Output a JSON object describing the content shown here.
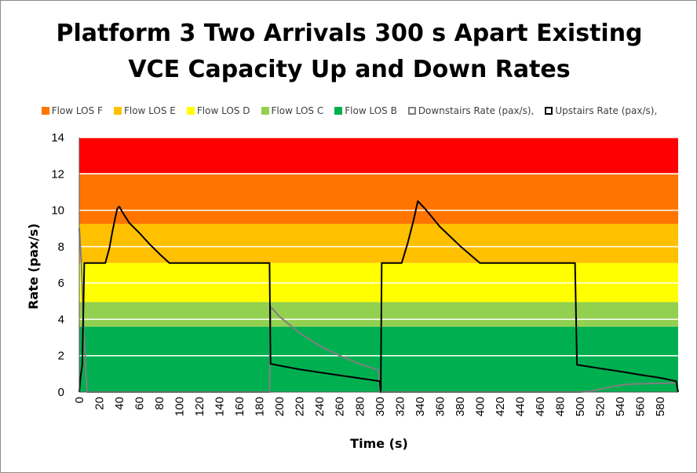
{
  "chart_data": {
    "type": "line",
    "title_lines": [
      "Platform 3 Two Arrivals 300 s Apart Existing",
      "VCE Capacity Up and Down Rates"
    ],
    "xlabel": "Time (s)",
    "ylabel": "Rate (pax/s)",
    "xlim": [
      0,
      598
    ],
    "ylim": [
      0,
      14
    ],
    "x_ticks": [
      0,
      20,
      40,
      60,
      80,
      100,
      120,
      140,
      160,
      180,
      200,
      220,
      240,
      260,
      280,
      300,
      320,
      340,
      360,
      380,
      400,
      420,
      440,
      460,
      480,
      500,
      520,
      540,
      560,
      580
    ],
    "y_ticks": [
      0,
      2,
      4,
      6,
      8,
      10,
      12,
      14
    ],
    "bands": [
      {
        "name": "Flow LOS B",
        "from": 0,
        "to": 3.6,
        "color": "#00b050"
      },
      {
        "name": "Flow LOS C",
        "from": 3.6,
        "to": 4.95,
        "color": "#92d050"
      },
      {
        "name": "Flow LOS D",
        "from": 4.95,
        "to": 7.1,
        "color": "#ffff00"
      },
      {
        "name": "Flow LOS E",
        "from": 7.1,
        "to": 9.25,
        "color": "#ffc000"
      },
      {
        "name": "Flow LOS F",
        "from": 9.25,
        "to": 12.05,
        "color": "#ff7500"
      },
      {
        "name": "",
        "from": 12.05,
        "to": 14,
        "color": "#ff0000"
      }
    ],
    "series": [
      {
        "name": "Downstairs Rate (pax/s),",
        "color": "#7f7f7f",
        "points": [
          [
            0,
            9.0
          ],
          [
            2,
            7.2
          ],
          [
            4,
            4.0
          ],
          [
            6,
            1.8
          ],
          [
            7,
            0.6
          ],
          [
            8,
            0
          ],
          [
            190,
            0
          ],
          [
            191,
            4.7
          ],
          [
            200,
            4.15
          ],
          [
            220,
            3.25
          ],
          [
            240,
            2.55
          ],
          [
            260,
            2.0
          ],
          [
            280,
            1.55
          ],
          [
            299,
            1.2
          ],
          [
            300,
            0
          ],
          [
            500,
            0
          ],
          [
            510,
            0.05
          ],
          [
            520,
            0.15
          ],
          [
            530,
            0.28
          ],
          [
            540,
            0.38
          ],
          [
            550,
            0.43
          ],
          [
            560,
            0.46
          ],
          [
            580,
            0.48
          ],
          [
            597,
            0.48
          ]
        ]
      },
      {
        "name": "Upstairs Rate (pax/s),",
        "color": "#000000",
        "points": [
          [
            0,
            0
          ],
          [
            1,
            0.7
          ],
          [
            3,
            1.5
          ],
          [
            5,
            7.1
          ],
          [
            26,
            7.1
          ],
          [
            30,
            7.9
          ],
          [
            33,
            8.8
          ],
          [
            36,
            9.6
          ],
          [
            38,
            10.1
          ],
          [
            40,
            10.2
          ],
          [
            43,
            9.9
          ],
          [
            50,
            9.3
          ],
          [
            60,
            8.75
          ],
          [
            70,
            8.15
          ],
          [
            80,
            7.6
          ],
          [
            90,
            7.1
          ],
          [
            190,
            7.1
          ],
          [
            191,
            1.55
          ],
          [
            220,
            1.25
          ],
          [
            250,
            1.0
          ],
          [
            275,
            0.8
          ],
          [
            300,
            0.6
          ],
          [
            301,
            0
          ],
          [
            302,
            7.1
          ],
          [
            322,
            7.1
          ],
          [
            328,
            8.2
          ],
          [
            334,
            9.5
          ],
          [
            338,
            10.5
          ],
          [
            345,
            10.1
          ],
          [
            360,
            9.1
          ],
          [
            380,
            8.05
          ],
          [
            400,
            7.1
          ],
          [
            495,
            7.1
          ],
          [
            497,
            1.5
          ],
          [
            520,
            1.3
          ],
          [
            540,
            1.13
          ],
          [
            560,
            0.95
          ],
          [
            580,
            0.78
          ],
          [
            596,
            0.6
          ],
          [
            598,
            0
          ]
        ]
      }
    ]
  },
  "legend": [
    {
      "label": "Flow LOS F",
      "color": "#ff7500",
      "style": "fill"
    },
    {
      "label": "Flow LOS E",
      "color": "#ffc000",
      "style": "fill"
    },
    {
      "label": "Flow LOS D",
      "color": "#ffff00",
      "style": "fill"
    },
    {
      "label": "Flow LOS C",
      "color": "#92d050",
      "style": "fill"
    },
    {
      "label": "Flow LOS B",
      "color": "#00b050",
      "style": "fill"
    },
    {
      "label": "Downstairs Rate (pax/s),",
      "color": "#7f7f7f",
      "style": "outline"
    },
    {
      "label": "Upstairs Rate (pax/s),",
      "color": "#000000",
      "style": "outline"
    }
  ]
}
